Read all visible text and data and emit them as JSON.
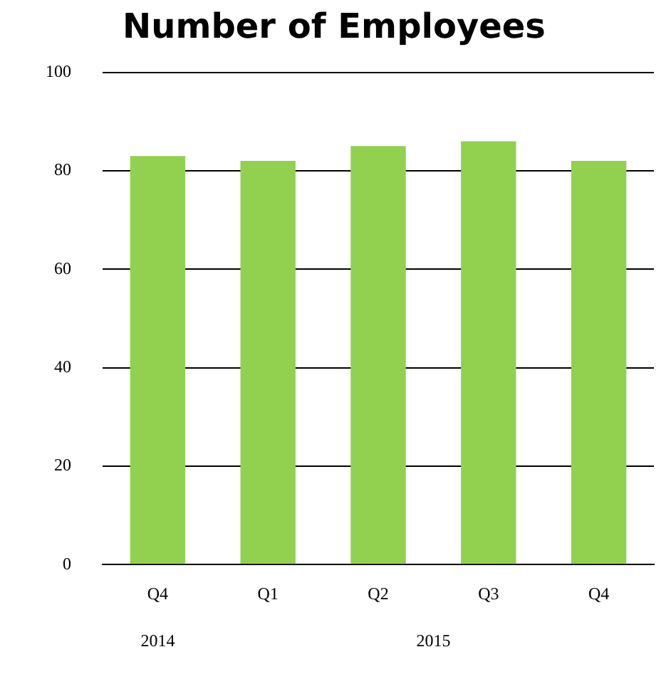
{
  "chart_data": {
    "type": "bar",
    "title": "Number of Employees",
    "categories": [
      "Q4",
      "Q1",
      "Q2",
      "Q3",
      "Q4"
    ],
    "values": [
      83,
      82,
      85,
      86,
      82
    ],
    "color": "#92d050",
    "ylim": [
      0,
      100
    ],
    "yticks": [
      0,
      20,
      40,
      60,
      80,
      100
    ],
    "grid": "y",
    "annotations": [
      "2014",
      "2015"
    ]
  }
}
